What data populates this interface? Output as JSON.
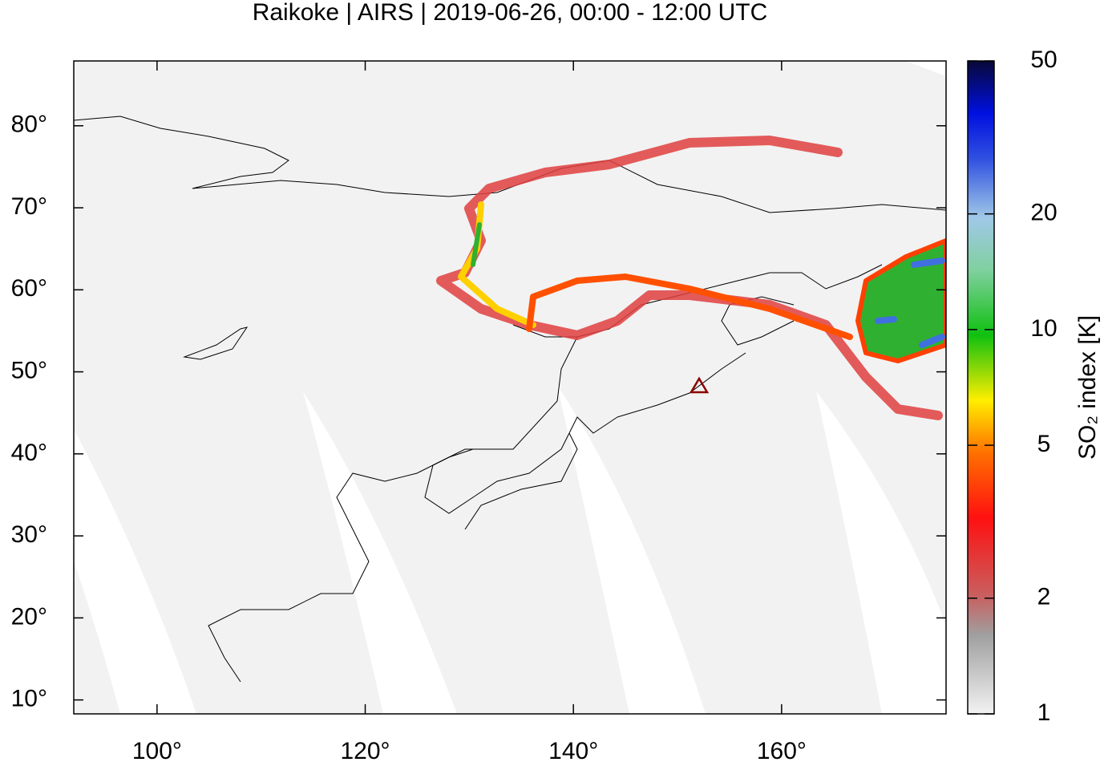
{
  "chart_data": {
    "type": "map",
    "title": "Raikoke | AIRS | 2019-06-26, 00:00 - 12:00 UTC",
    "xlim": [
      92,
      175.8
    ],
    "ylim": [
      8.3,
      87.9
    ],
    "xticks": [
      {
        "value": 100,
        "label": "100°"
      },
      {
        "value": 120,
        "label": "120°"
      },
      {
        "value": 140,
        "label": "140°"
      },
      {
        "value": 160,
        "label": "160°"
      }
    ],
    "yticks": [
      {
        "value": 10,
        "label": "10°"
      },
      {
        "value": 20,
        "label": "20°"
      },
      {
        "value": 30,
        "label": "30°"
      },
      {
        "value": 40,
        "label": "40°"
      },
      {
        "value": 50,
        "label": "50°"
      },
      {
        "value": 60,
        "label": "60°"
      },
      {
        "value": 70,
        "label": "70°"
      },
      {
        "value": 80,
        "label": "80°"
      }
    ],
    "colorbar": {
      "label": "SO₂ index [K]",
      "lim": [
        1,
        50
      ],
      "log": true,
      "ticks": [
        1,
        2,
        5,
        10,
        20,
        50
      ]
    }
  }
}
